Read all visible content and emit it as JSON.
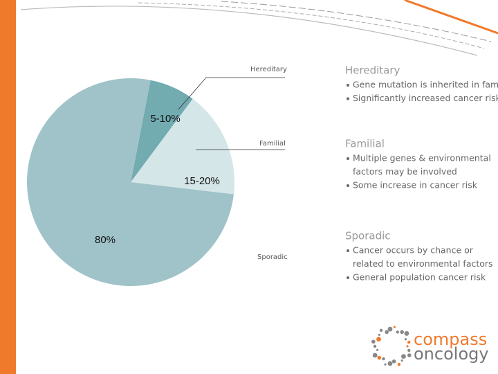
{
  "chart_data": {
    "type": "pie",
    "categories": [
      "Hereditary",
      "Familial",
      "Sporadic"
    ],
    "values": [
      7.5,
      17.5,
      80
    ],
    "value_labels": [
      "5-10%",
      "15-20%",
      "80%"
    ],
    "colors": [
      "#72abb0",
      "#d5e6e9",
      "#9fc3c8"
    ]
  },
  "descriptions": [
    {
      "title": "Hereditary",
      "bullets": [
        [
          "Gene mutation is inherited in family"
        ],
        [
          "Significantly increased cancer risk"
        ]
      ]
    },
    {
      "title": "Familial",
      "bullets": [
        [
          "Multiple genes & environmental",
          "factors may be involved"
        ],
        [
          "Some increase in cancer risk"
        ]
      ]
    },
    {
      "title": "Sporadic",
      "bullets": [
        [
          "Cancer occurs by chance or",
          "related to environmental factors"
        ],
        [
          "General population cancer risk"
        ]
      ]
    }
  ],
  "logo": {
    "line1": "compass",
    "line2": "oncology"
  }
}
